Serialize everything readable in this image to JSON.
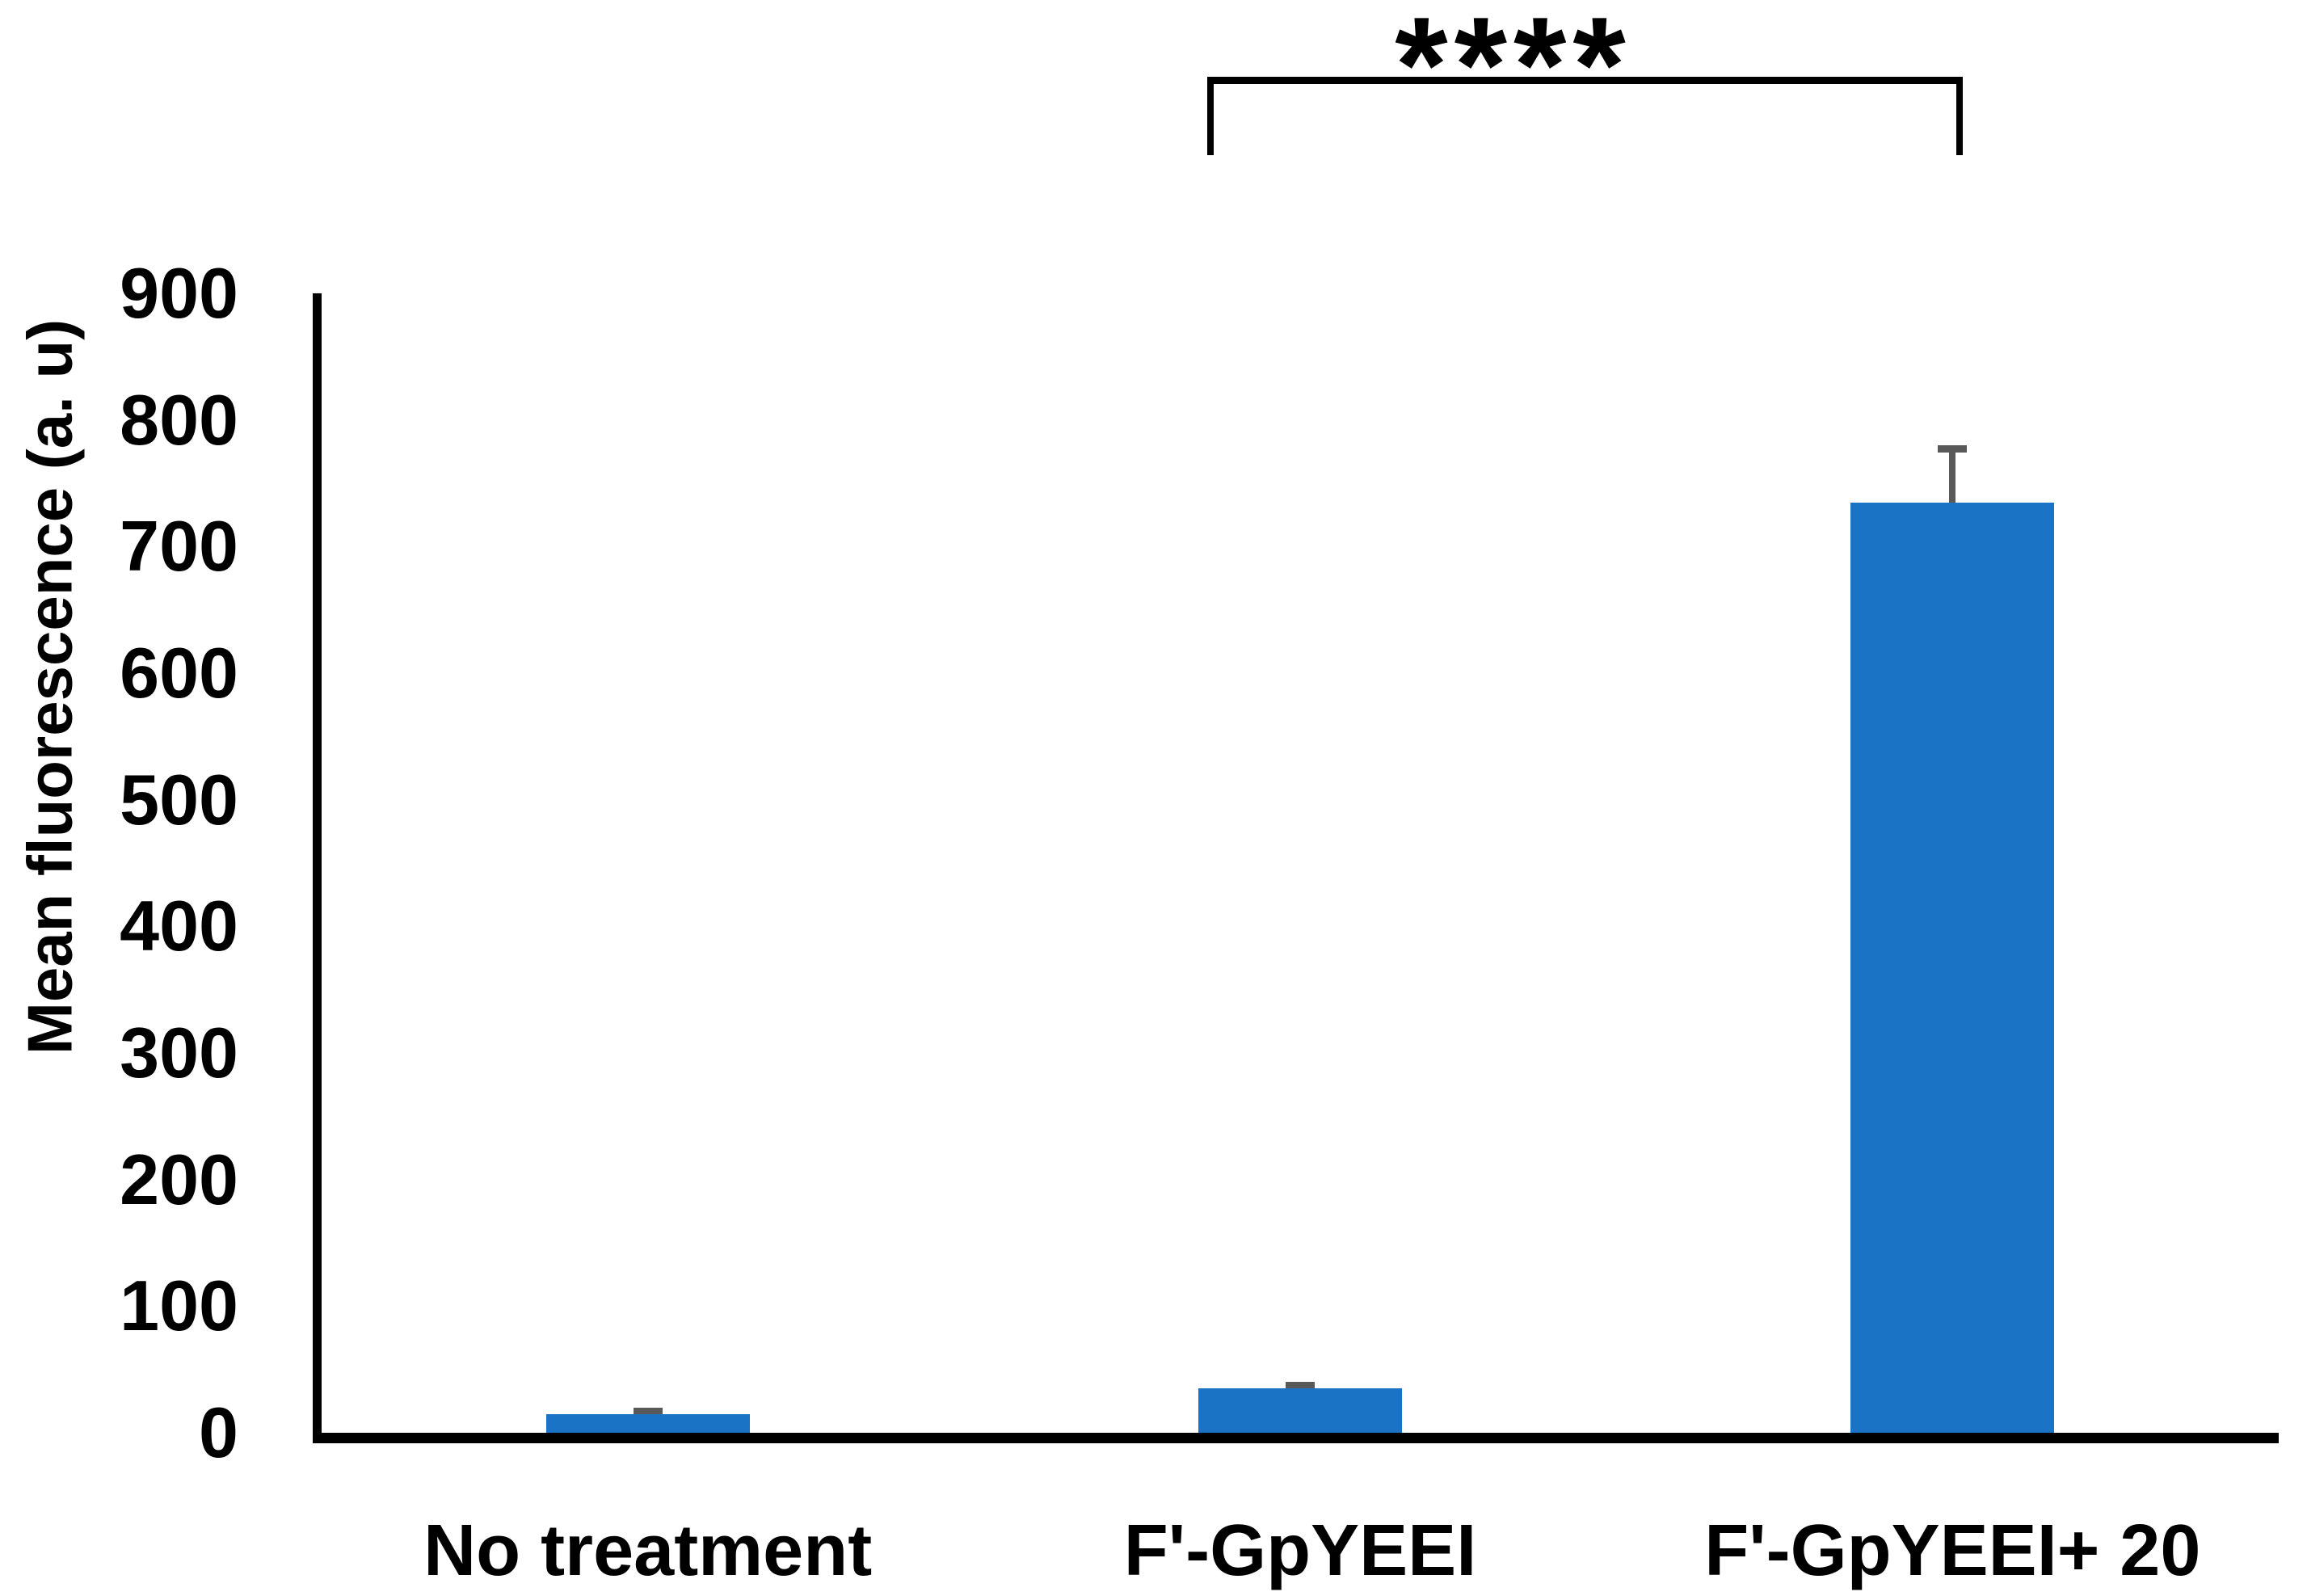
{
  "chart_data": {
    "type": "bar",
    "title": "",
    "categories": [
      "No treatment",
      "F'-GpYEEI",
      "F'-GpYEEI+ 20"
    ],
    "values": [
      15,
      35,
      735
    ],
    "error_bars": [
      5,
      5,
      45
    ],
    "xlabel": "",
    "ylabel": "Mean fluorescence (a. u)",
    "ylim": [
      0,
      900
    ],
    "yticks": [
      0,
      100,
      200,
      300,
      400,
      500,
      600,
      700,
      800,
      900
    ],
    "grid": false,
    "legend": false,
    "bar_color": "#1A73C4",
    "error_bar_color": "#595959",
    "axis_color": "#000000",
    "annotation": {
      "significance_label": "****",
      "from_category": "F'-GpYEEI",
      "to_category": "F'-GpYEEI+ 20"
    }
  }
}
